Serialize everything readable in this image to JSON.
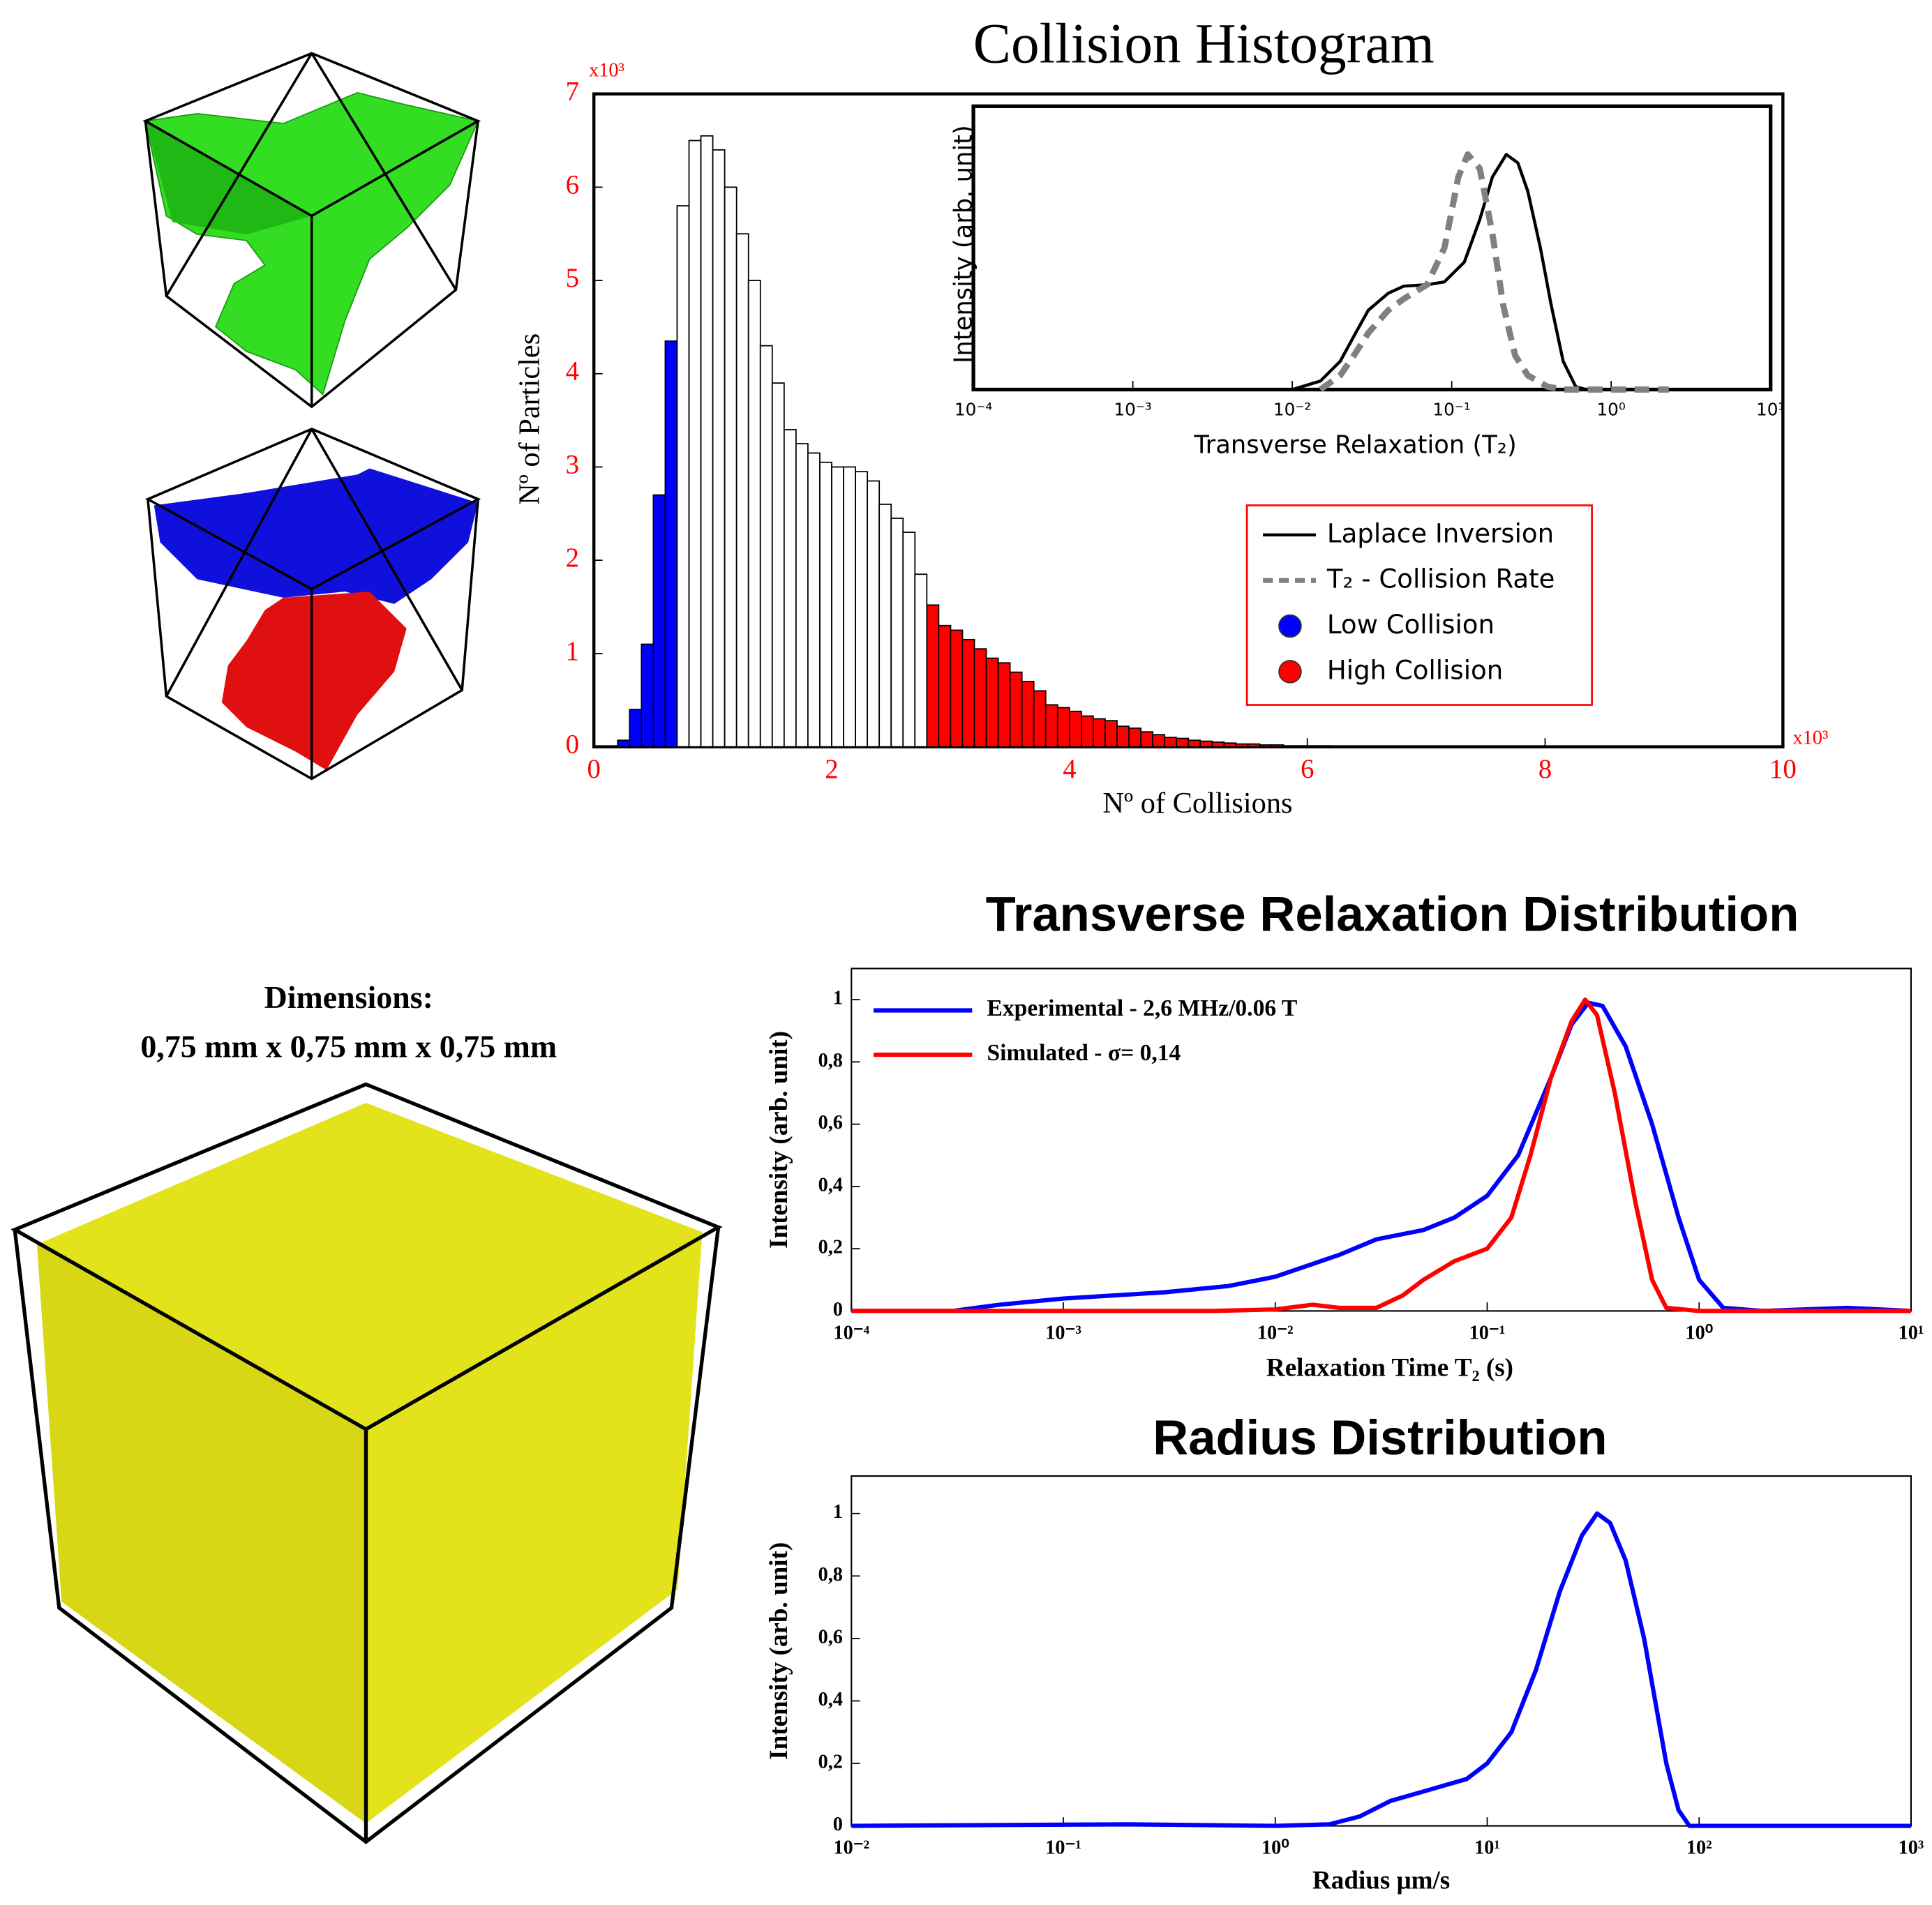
{
  "figure": {
    "dimensions_title": "Dimensions:",
    "dimensions": "0,75 mm x 0,75 mm x 0,75 mm"
  },
  "chart_data": [
    {
      "type": "histogram",
      "title": "Collision Histogram",
      "x_label": "Nº of Collisions",
      "y_label": "Nº of Particles",
      "x_multiplier": "x10³",
      "y_multiplier": "x10³",
      "tick_color": "#ff0000",
      "xlim": [
        0,
        10
      ],
      "ylim": [
        0,
        7
      ],
      "xticks": [
        0,
        2,
        4,
        6,
        8,
        10
      ],
      "yticks": [
        0,
        1,
        2,
        3,
        4,
        5,
        6,
        7
      ],
      "series": [
        {
          "name": "Low Collision",
          "color": "#0000ff",
          "bins": [
            0.2,
            0.3,
            0.4,
            0.5,
            0.6,
            0.7
          ],
          "counts": [
            0.07,
            0.4,
            1.1,
            2.7,
            4.35
          ]
        },
        {
          "color": "#ffffff",
          "bins": [
            0.7,
            0.8,
            0.9,
            1.0,
            1.1,
            1.2,
            1.3,
            1.4,
            1.5,
            1.6,
            1.7,
            1.8,
            1.9,
            2.0,
            2.1,
            2.2,
            2.3,
            2.4,
            2.5,
            2.6,
            2.7,
            2.8
          ],
          "counts": [
            5.8,
            6.5,
            6.55,
            6.4,
            6.0,
            5.5,
            5.0,
            4.3,
            3.9,
            3.4,
            3.25,
            3.15,
            3.05,
            3.0,
            3.0,
            2.95,
            2.85,
            2.6,
            2.45,
            2.3,
            1.85
          ]
        },
        {
          "name": "High Collision",
          "color": "#ff0000",
          "bins": [
            2.8,
            2.9,
            3.0,
            3.1,
            3.2,
            3.3,
            3.4,
            3.5,
            3.6,
            3.7,
            3.8,
            3.9,
            4.0,
            4.1,
            4.2,
            4.3,
            4.4,
            4.5,
            4.6,
            4.7,
            4.8,
            4.9,
            5.0,
            5.1,
            5.2,
            5.3,
            5.4,
            5.5,
            5.6,
            5.7,
            5.8,
            5.9,
            6.0,
            6.1,
            6.2
          ],
          "counts": [
            1.52,
            1.3,
            1.25,
            1.15,
            1.05,
            0.95,
            0.9,
            0.8,
            0.7,
            0.6,
            0.45,
            0.42,
            0.38,
            0.33,
            0.3,
            0.28,
            0.22,
            0.2,
            0.16,
            0.13,
            0.1,
            0.09,
            0.07,
            0.06,
            0.05,
            0.04,
            0.03,
            0.03,
            0.02,
            0.02,
            0.01,
            0.01,
            0.01,
            0.01
          ]
        }
      ]
    },
    {
      "type": "line",
      "x_label": "Transverse Relaxation (T₂)",
      "y_label": "Intensity (arb. unit)",
      "xscale": "log",
      "xlim": [
        0.0001,
        10
      ],
      "ylim": [
        0,
        1
      ],
      "xticks": [
        {
          "value": 0.0001,
          "label": "10⁻⁴"
        },
        {
          "value": 0.001,
          "label": "10⁻³"
        },
        {
          "value": 0.01,
          "label": "10⁻²"
        },
        {
          "value": 0.1,
          "label": "10⁻¹"
        },
        {
          "value": 1,
          "label": "10⁰"
        },
        {
          "value": 10,
          "label": "10¹"
        }
      ],
      "series": [
        {
          "name": "Laplace Inversion",
          "color": "#000000",
          "dashed": false,
          "x": [
            0.0001,
            0.001,
            0.01,
            0.015,
            0.02,
            0.025,
            0.03,
            0.04,
            0.05,
            0.07,
            0.09,
            0.12,
            0.15,
            0.18,
            0.22,
            0.26,
            0.3,
            0.36,
            0.42,
            0.5,
            0.6,
            0.7,
            10
          ],
          "values": [
            0,
            0,
            0,
            0.03,
            0.1,
            0.2,
            0.28,
            0.34,
            0.365,
            0.37,
            0.38,
            0.45,
            0.6,
            0.75,
            0.83,
            0.8,
            0.7,
            0.5,
            0.3,
            0.1,
            0.01,
            0,
            0
          ]
        },
        {
          "name": "T₂ - Collision Rate",
          "color": "#808080",
          "dashed": true,
          "x": [
            0.015,
            0.02,
            0.025,
            0.03,
            0.04,
            0.05,
            0.07,
            0.09,
            0.11,
            0.126,
            0.15,
            0.18,
            0.21,
            0.25,
            0.3,
            0.4,
            0.5,
            2.3
          ],
          "values": [
            0,
            0.05,
            0.13,
            0.2,
            0.28,
            0.32,
            0.37,
            0.5,
            0.75,
            0.83,
            0.78,
            0.55,
            0.3,
            0.12,
            0.05,
            0.01,
            0,
            0
          ]
        }
      ]
    },
    {
      "type": "line",
      "title": "Transverse Relaxation Distribution",
      "x_label": "Relaxation Time T₂ (s)",
      "y_label": "Intensity (arb. unit)",
      "xscale": "log",
      "xlim": [
        0.0001,
        10
      ],
      "ylim": [
        0,
        1.1
      ],
      "legend": "upper left",
      "xticks": [
        {
          "value": 0.0001,
          "label": "10⁻⁴"
        },
        {
          "value": 0.001,
          "label": "10⁻³"
        },
        {
          "value": 0.01,
          "label": "10⁻²"
        },
        {
          "value": 0.1,
          "label": "10⁻¹"
        },
        {
          "value": 1,
          "label": "10⁰"
        },
        {
          "value": 10,
          "label": "10¹"
        }
      ],
      "yticks": [
        0,
        {
          "value": 0.2,
          "label": "0,2"
        },
        {
          "value": 0.4,
          "label": "0,4"
        },
        {
          "value": 0.6,
          "label": "0,6"
        },
        {
          "value": 0.8,
          "label": "0,8"
        },
        1
      ],
      "series": [
        {
          "name": "Experimental - 2,6 MHz/0.06 T",
          "color": "#0000ff",
          "x": [
            0.0001,
            0.0003,
            0.0005,
            0.001,
            0.003,
            0.006,
            0.01,
            0.02,
            0.03,
            0.05,
            0.07,
            0.1,
            0.14,
            0.2,
            0.25,
            0.3,
            0.35,
            0.45,
            0.6,
            0.8,
            1.0,
            1.3,
            2,
            5,
            10
          ],
          "values": [
            0,
            0,
            0.02,
            0.04,
            0.06,
            0.08,
            0.11,
            0.18,
            0.23,
            0.26,
            0.3,
            0.37,
            0.5,
            0.75,
            0.92,
            0.99,
            0.98,
            0.85,
            0.6,
            0.3,
            0.1,
            0.01,
            0,
            0.01,
            0
          ]
        },
        {
          "name": "Simulated - σ= 0,14",
          "color": "#ff0000",
          "x": [
            0.0001,
            0.005,
            0.01,
            0.015,
            0.02,
            0.03,
            0.04,
            0.05,
            0.07,
            0.1,
            0.13,
            0.16,
            0.2,
            0.25,
            0.29,
            0.33,
            0.4,
            0.5,
            0.6,
            0.7,
            1,
            10
          ],
          "values": [
            0,
            0,
            0.005,
            0.02,
            0.01,
            0.01,
            0.05,
            0.1,
            0.16,
            0.2,
            0.3,
            0.5,
            0.75,
            0.93,
            1.0,
            0.95,
            0.7,
            0.35,
            0.1,
            0.01,
            0,
            0
          ]
        }
      ]
    },
    {
      "type": "line",
      "title": "Radius Distribution",
      "x_label": "Radius μm/s",
      "y_label": "Intensity (arb. unit)",
      "xscale": "log",
      "xlim": [
        0.01,
        1000
      ],
      "ylim": [
        0,
        1.12
      ],
      "xticks": [
        {
          "value": 0.01,
          "label": "10⁻²"
        },
        {
          "value": 0.1,
          "label": "10⁻¹"
        },
        {
          "value": 1,
          "label": "10⁰"
        },
        {
          "value": 10,
          "label": "10¹"
        },
        {
          "value": 100,
          "label": "10²"
        },
        {
          "value": 1000,
          "label": "10³"
        }
      ],
      "yticks": [
        0,
        {
          "value": 0.2,
          "label": "0,2"
        },
        {
          "value": 0.4,
          "label": "0,4"
        },
        {
          "value": 0.6,
          "label": "0,6"
        },
        {
          "value": 0.8,
          "label": "0,8"
        },
        1
      ],
      "series": [
        {
          "color": "#0000ff",
          "x": [
            0.01,
            0.2,
            1,
            1.8,
            2.5,
            3.5,
            5,
            8,
            10,
            13,
            17,
            22,
            28,
            33,
            38,
            45,
            55,
            70,
            80,
            90,
            1000
          ],
          "values": [
            0,
            0.005,
            0,
            0.005,
            0.03,
            0.08,
            0.11,
            0.15,
            0.2,
            0.3,
            0.5,
            0.75,
            0.93,
            1.0,
            0.97,
            0.85,
            0.6,
            0.2,
            0.05,
            0,
            0
          ]
        }
      ]
    }
  ]
}
